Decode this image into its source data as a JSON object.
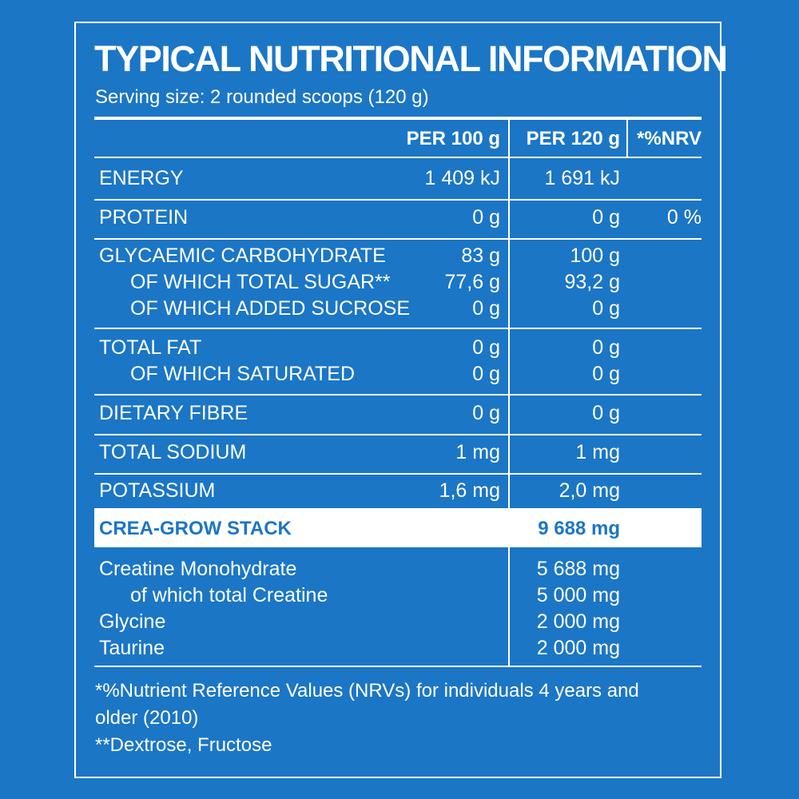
{
  "title": "TYPICAL NUTRITIONAL INFORMATION",
  "serving": "Serving size: 2 rounded scoops (120 g)",
  "headers": {
    "per100": "PER 100 g",
    "per120": "PER 120 g",
    "nrv": "*%NRV"
  },
  "rows": {
    "energy": {
      "label": "ENERGY",
      "per100": "1 409 kJ",
      "per120": "1 691 kJ"
    },
    "protein": {
      "label": "PROTEIN",
      "per100": "0 g",
      "per120": "0 g",
      "nrv": "0 %"
    },
    "carb": {
      "label": "GLYCAEMIC CARBOHYDRATE",
      "per100": "83 g",
      "per120": "100 g"
    },
    "sugar": {
      "label": "OF WHICH TOTAL SUGAR**",
      "per100": "77,6 g",
      "per120": "93,2 g"
    },
    "sucrose": {
      "label": "OF WHICH ADDED SUCROSE",
      "per100": "0 g",
      "per120": "0 g"
    },
    "fat": {
      "label": "TOTAL FAT",
      "per100": "0 g",
      "per120": "0 g"
    },
    "saturated": {
      "label": "OF WHICH SATURATED",
      "per100": "0 g",
      "per120": "0 g"
    },
    "fibre": {
      "label": "DIETARY FIBRE",
      "per100": "0 g",
      "per120": "0 g"
    },
    "sodium": {
      "label": "TOTAL SODIUM",
      "per100": "1 mg",
      "per120": "1 mg"
    },
    "potassium": {
      "label": "POTASSIUM",
      "per100": "1,6 mg",
      "per120": "2,0 mg"
    }
  },
  "stack": {
    "label": "CREA-GROW STACK",
    "per120": "9 688 mg"
  },
  "ingredients": {
    "creatine_mono": {
      "label": "Creatine Monohydrate",
      "per120": "5 688 mg"
    },
    "creatine_total": {
      "label": "of which total Creatine",
      "per120": "5 000 mg"
    },
    "glycine": {
      "label": "Glycine",
      "per120": "2 000 mg"
    },
    "taurine": {
      "label": "Taurine",
      "per120": "2 000 mg"
    }
  },
  "footnotes": {
    "line1": "*%Nutrient Reference Values (NRVs) for individuals 4 years and",
    "line2": "older (2010)",
    "line3": "**Dextrose, Fructose"
  },
  "colors": {
    "background": "#1b76c6",
    "text": "#ffffff",
    "band_text": "#1b76c6"
  }
}
